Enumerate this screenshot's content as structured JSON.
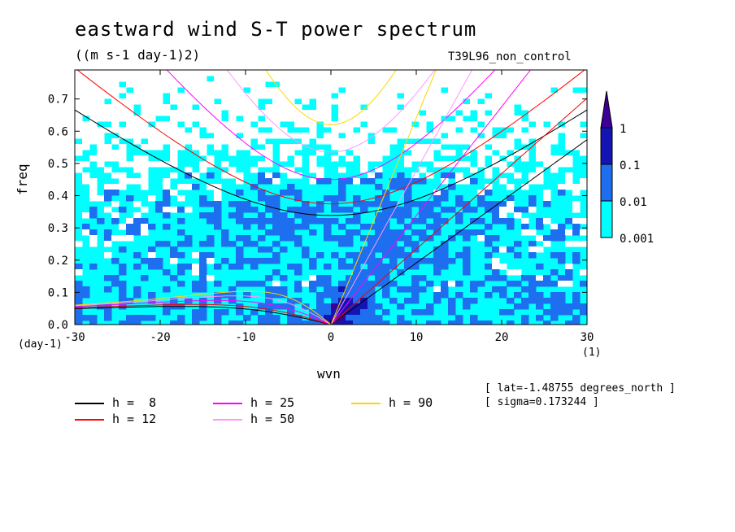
{
  "title": "eastward wind S-T power spectrum",
  "units": "((m s-1 day-1)2)",
  "run_name": "T39L96_non_control",
  "info": [
    "[ lat=-1.48755 degrees_north ]",
    "[ sigma=0.173244 ]"
  ],
  "chart_data": {
    "type": "heatmap",
    "title": "eastward wind S-T power spectrum",
    "xlabel": "wvn",
    "ylabel": "freq",
    "x_unit": "(1)",
    "y_unit": "(day-1)",
    "xlim": [
      -30,
      30
    ],
    "ylim": [
      0,
      0.79
    ],
    "x_ticks": [
      -30,
      -20,
      -10,
      0,
      10,
      20,
      30
    ],
    "y_ticks": [
      0.0,
      0.1,
      0.2,
      0.3,
      0.4,
      0.5,
      0.6,
      0.7
    ],
    "x_tick_labels": [
      "-30",
      "-20",
      "-10",
      "0",
      "10",
      "20",
      "30"
    ],
    "y_tick_labels": [
      "0.0",
      "0.1",
      "0.2",
      "0.3",
      "0.4",
      "0.5",
      "0.6",
      "0.7"
    ],
    "colorbar": {
      "levels": [
        "0.001",
        "0.01",
        "0.1",
        "1"
      ],
      "colors": [
        "#ffffff",
        "#00ffff",
        "#1e6ef0",
        "#1414b4",
        "#3c0096"
      ]
    },
    "series": [
      {
        "name": "h =  8",
        "color": "#000000"
      },
      {
        "name": "h = 12",
        "color": "#ff0000"
      },
      {
        "name": "h = 25",
        "color": "#ff00ff"
      },
      {
        "name": "h = 50",
        "color": "#ff96ff"
      },
      {
        "name": "h = 90",
        "color": "#ffd700"
      }
    ],
    "equivalent_depths": [
      8,
      12,
      25,
      50,
      90
    ]
  }
}
